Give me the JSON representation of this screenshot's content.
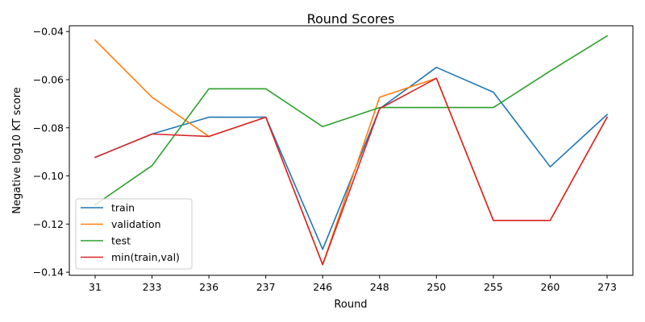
{
  "chart_data": {
    "type": "line",
    "title": "Round Scores",
    "xlabel": "Round",
    "ylabel": "Negative log10 KT score",
    "categories": [
      "31",
      "233",
      "236",
      "237",
      "246",
      "248",
      "250",
      "255",
      "260",
      "273"
    ],
    "ylim": [
      -0.1413,
      -0.0376
    ],
    "yticks": [
      -0.14,
      -0.12,
      -0.1,
      -0.08,
      -0.06,
      -0.04
    ],
    "ytick_labels": [
      "−0.14",
      "−0.12",
      "−0.10",
      "−0.08",
      "−0.06",
      "−0.04"
    ],
    "grid": false,
    "legend_position": "lower-left",
    "series": [
      {
        "name": "train",
        "color": "#1f77b4",
        "values": [
          -0.0923,
          -0.0826,
          -0.0756,
          -0.0756,
          -0.1305,
          -0.0721,
          -0.0549,
          -0.0652,
          -0.0962,
          -0.0745
        ]
      },
      {
        "name": "validation",
        "color": "#ff7f0e",
        "values": [
          -0.0436,
          -0.0673,
          -0.0836,
          -0.0756,
          -0.1369,
          -0.0673,
          -0.0594,
          -0.1185,
          -0.1185,
          -0.0756
        ]
      },
      {
        "name": "test",
        "color": "#2ca02c",
        "values": [
          -0.112,
          -0.0957,
          -0.0638,
          -0.0638,
          -0.0795,
          -0.0716,
          -0.0716,
          -0.0716,
          -0.0564,
          -0.0418
        ]
      },
      {
        "name": "min(train,val)",
        "color": "#d62728",
        "values": [
          -0.0923,
          -0.0826,
          -0.0836,
          -0.0756,
          -0.1369,
          -0.0721,
          -0.0594,
          -0.1185,
          -0.1185,
          -0.0756
        ]
      }
    ]
  }
}
